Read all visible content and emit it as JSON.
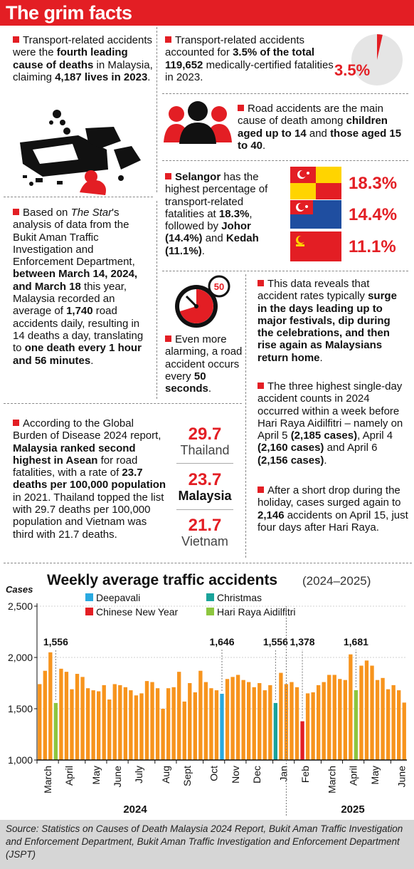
{
  "header": {
    "title": "The grim facts"
  },
  "facts": {
    "f1": {
      "t1": "Transport-related accidents were the ",
      "b1": "fourth leading cause of deaths",
      "t2": " in Malaysia, claiming ",
      "b2": "4,187 lives in 2023",
      "t3": "."
    },
    "f2": {
      "t1": "Transport-related accidents accounted for ",
      "b1": "3.5% of the total 119,652",
      "t2": " medically-certified fatalities in 2023.",
      "pct": "3.5%",
      "share": 0.035
    },
    "f3": {
      "t1": "Road accidents are the main cause of death among ",
      "b1": "children aged up to 14",
      "t2": " and ",
      "b2": "those aged 15 to 40",
      "t3": "."
    },
    "f4": {
      "b1": "Selangor",
      "t1": " has the highest percentage of transport-related fatalities at ",
      "b2": "18.3%",
      "t2": ", followed by ",
      "b3": "Johor (14.4%)",
      "t3": " and ",
      "b4": "Kedah (11.1%)",
      "t4": "."
    },
    "states": [
      {
        "pct": "18.3%",
        "flag": "selangor"
      },
      {
        "pct": "14.4%",
        "flag": "johor"
      },
      {
        "pct": "11.1%",
        "flag": "kedah"
      }
    ],
    "f5": {
      "t1": "Based on ",
      "i1": "The Star",
      "t2": "'s analysis of data from the Bukit Aman Traffic Investigation and Enforcement Department, ",
      "b1": "between March 14, 2024, and March 18",
      "t3": " this year, Malaysia recorded an average of ",
      "b2": "1,740",
      "t4": " road accidents daily, resulting in 14 deaths a day, translating to ",
      "b3": "one death every 1 hour and 56 minutes",
      "t5": "."
    },
    "f6": {
      "t1": "Even more alarming, a road accident occurs every ",
      "b1": "50 seconds",
      "t2": ".",
      "timer": "50"
    },
    "f7": {
      "t1": "This data reveals that accident rates typically ",
      "b1": "surge in the days leading up to major festivals, dip during the celebrations, and then rise again as Malaysians return home",
      "t2": "."
    },
    "f8": {
      "t1": "The three highest single-day accident counts in 2024 occurred within a week before Hari Raya Aidilfitri – namely on April 5 ",
      "b1": "(2,185 cases)",
      "t2": ", April 4 ",
      "b2": "(2,160 cases)",
      "t3": " and April 6 ",
      "b3": "(2,156 cases)",
      "t4": "."
    },
    "f9": {
      "t1": "After a short drop during the holiday, cases surged again to ",
      "b1": "2,146",
      "t2": " accidents on April 15, just four days after Hari Raya."
    },
    "f10": {
      "t1": "According to the Global Burden of Disease 2024 report, ",
      "b1": "Malaysia ranked second highest in Asean",
      "t2": " for road fatalities, with a rate of ",
      "b2": "23.7 deaths per 100,000 population",
      "t3": " in 2021. Thailand topped the list with 29.7 deaths per 100,000 population and Vietnam was third with 21.7 deaths."
    },
    "compare": [
      {
        "value": "29.7",
        "name": "Thailand"
      },
      {
        "value": "23.7",
        "name": "Malaysia"
      },
      {
        "value": "21.7",
        "name": "Vietnam"
      }
    ]
  },
  "chart_data": {
    "type": "bar",
    "title": "Weekly average traffic accidents",
    "subtitle": "(2024–2025)",
    "ylabel": "Cases",
    "ylim": [
      1000,
      2500
    ],
    "yticks": [
      "1,000",
      "1,500",
      "2,000",
      "2,500"
    ],
    "grid": true,
    "legend": [
      {
        "name": "Deepavali",
        "color": "#29a9e0"
      },
      {
        "name": "Christmas",
        "color": "#1aa39a"
      },
      {
        "name": "Chinese New Year",
        "color": "#e31e24"
      },
      {
        "name": "Hari Raya Aidilfitri",
        "color": "#8dc63f"
      }
    ],
    "colors": {
      "default": "#f7941d",
      "deepavali": "#29a9e0",
      "christmas": "#1aa39a",
      "cny": "#e31e24",
      "raya": "#8dc63f"
    },
    "x_labels": [
      "March",
      "April",
      "May",
      "June",
      "July",
      "Aug",
      "Sept",
      "Oct",
      "Nov",
      "Dec",
      "Jan",
      "Feb",
      "March",
      "April",
      "May",
      "June"
    ],
    "years": [
      "2024",
      "2025"
    ],
    "values": [
      1740,
      1870,
      2050,
      1556,
      1890,
      1860,
      1690,
      1840,
      1810,
      1700,
      1680,
      1670,
      1730,
      1590,
      1740,
      1730,
      1710,
      1680,
      1630,
      1650,
      1770,
      1760,
      1700,
      1500,
      1700,
      1710,
      1860,
      1570,
      1750,
      1660,
      1870,
      1760,
      1700,
      1680,
      1646,
      1790,
      1810,
      1830,
      1780,
      1760,
      1710,
      1750,
      1680,
      1730,
      1556,
      1850,
      1740,
      1760,
      1710,
      1378,
      1650,
      1660,
      1730,
      1760,
      1830,
      1830,
      1790,
      1780,
      2030,
      1681,
      1920,
      1970,
      1920,
      1780,
      1800,
      1690,
      1730,
      1680,
      1560
    ],
    "highlights": [
      {
        "index": 3,
        "kind": "raya",
        "label": "1,556"
      },
      {
        "index": 34,
        "kind": "deepavali",
        "label": "1,646"
      },
      {
        "index": 44,
        "kind": "christmas",
        "label": "1,556"
      },
      {
        "index": 49,
        "kind": "cny",
        "label": "1,378"
      },
      {
        "index": 59,
        "kind": "raya",
        "label": "1,681"
      }
    ]
  },
  "source": "Source: Statistics on Causes of Death Malaysia 2024 Report, Bukit Aman Traffic Investigation and Enforcement Department, Bukit Aman Traffic Investigation and Enforcement Department (JSPT)"
}
